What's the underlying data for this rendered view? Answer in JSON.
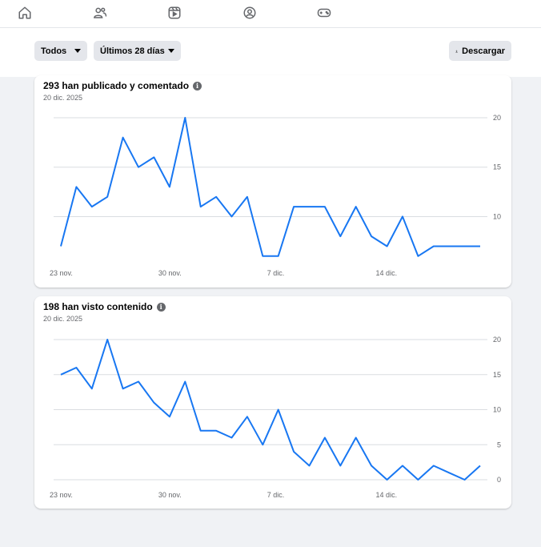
{
  "nav": {
    "icons": [
      "home-icon",
      "groups-icon",
      "reels-icon",
      "profile-circle-icon",
      "gaming-icon"
    ]
  },
  "toolbar": {
    "filter_label": "Todos",
    "range_label": "Últimos 28 días",
    "download_label": "Descargar"
  },
  "colors": {
    "accent": "#1877f2",
    "grid": "#dadde1",
    "muted": "#65676b"
  },
  "chart_data": [
    {
      "type": "line",
      "title": "293 han publicado y comentado",
      "subtitle": "20 dic. 2025",
      "x_tick_labels": [
        "23 nov.",
        "30 nov.",
        "7 dic.",
        "14 dic."
      ],
      "x_tick_index": [
        0,
        7,
        14,
        21
      ],
      "y_ticks": [
        10,
        15,
        20
      ],
      "ylim": [
        5.5,
        20
      ],
      "grid": true,
      "series": [
        {
          "values": [
            7,
            13,
            11,
            12,
            18,
            15,
            16,
            13,
            20,
            11,
            12,
            10,
            12,
            6,
            6,
            11,
            11,
            11,
            8,
            11,
            8,
            7,
            10,
            6,
            7,
            7,
            7,
            7
          ]
        }
      ]
    },
    {
      "type": "line",
      "title": "198 han visto contenido",
      "subtitle": "20 dic. 2025",
      "x_tick_labels": [
        "23 nov.",
        "30 nov.",
        "7 dic.",
        "14 dic."
      ],
      "x_tick_index": [
        0,
        7,
        14,
        21
      ],
      "y_ticks": [
        0,
        5,
        10,
        15,
        20
      ],
      "ylim": [
        0,
        20
      ],
      "grid": true,
      "series": [
        {
          "values": [
            15,
            16,
            13,
            20,
            13,
            14,
            11,
            9,
            14,
            7,
            7,
            6,
            9,
            5,
            10,
            4,
            2,
            6,
            2,
            6,
            2,
            0,
            2,
            0,
            2,
            1,
            0,
            2
          ]
        }
      ]
    }
  ]
}
